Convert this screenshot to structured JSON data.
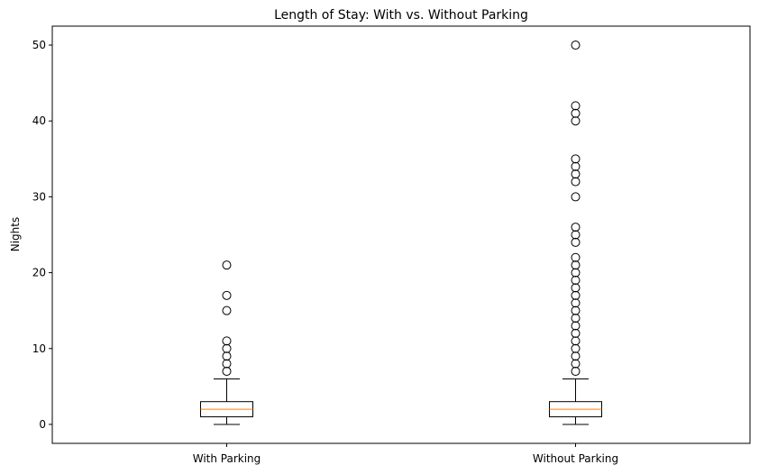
{
  "chart_data": {
    "type": "box",
    "title": "Length of Stay: With vs. Without Parking",
    "xlabel": "",
    "ylabel": "Nights",
    "ylim": [
      -2.5,
      52.5
    ],
    "yticks": [
      0,
      10,
      20,
      30,
      40,
      50
    ],
    "grid": false,
    "legend": "none",
    "categories": [
      "With Parking",
      "Without Parking"
    ],
    "boxes": [
      {
        "category": "With Parking",
        "whisker_low": 0,
        "q1": 1,
        "median": 2,
        "q3": 3,
        "whisker_high": 6,
        "outliers": [
          7,
          8,
          9,
          10,
          11,
          15,
          17,
          21
        ]
      },
      {
        "category": "Without Parking",
        "whisker_low": 0,
        "q1": 1,
        "median": 2,
        "q3": 3,
        "whisker_high": 6,
        "outliers": [
          7,
          8,
          9,
          10,
          11,
          12,
          13,
          14,
          15,
          16,
          17,
          18,
          19,
          20,
          21,
          22,
          24,
          25,
          26,
          30,
          32,
          33,
          34,
          35,
          40,
          41,
          42,
          50
        ]
      }
    ],
    "colors": {
      "box": "#000000",
      "median": "#ff7f0e",
      "flier": "#000000"
    }
  }
}
